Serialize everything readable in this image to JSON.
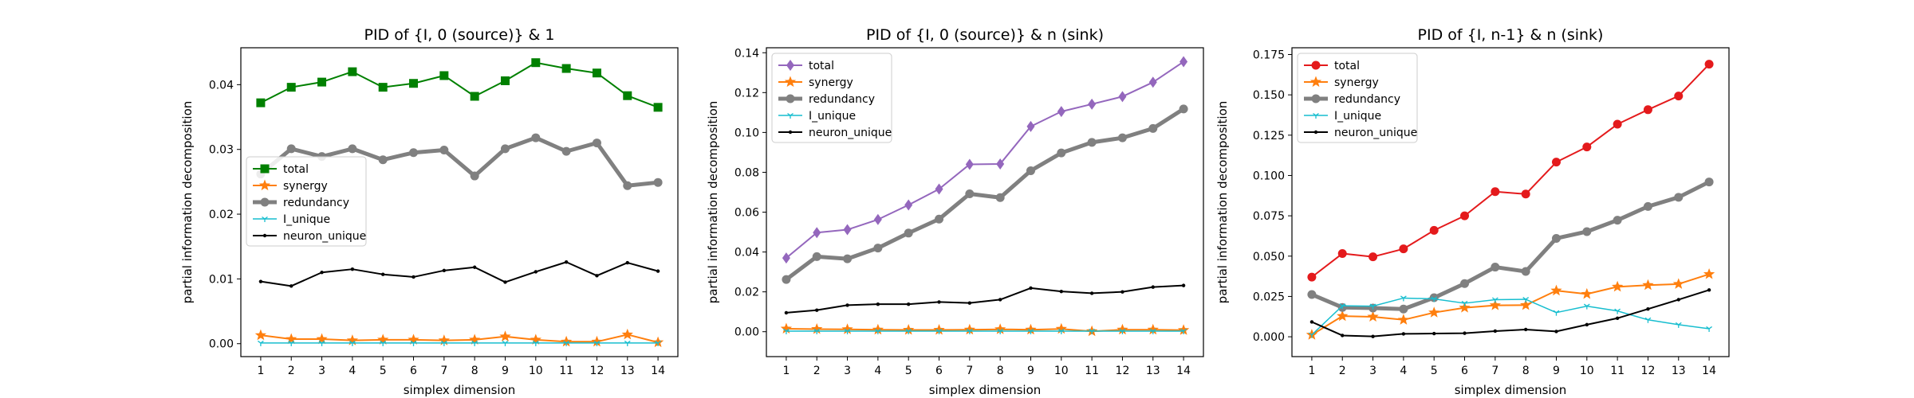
{
  "chart_data": [
    {
      "type": "line",
      "title": "PID of {I, 0 (source)} & 1",
      "xlabel": "simplex dimension",
      "ylabel": "partial information decomposition",
      "x": [
        1,
        2,
        3,
        4,
        5,
        6,
        7,
        8,
        9,
        10,
        11,
        12,
        13,
        14
      ],
      "xticks": [
        "1",
        "2",
        "3",
        "4",
        "5",
        "6",
        "7",
        "8",
        "9",
        "10",
        "11",
        "12",
        "13",
        "14"
      ],
      "yticks": [
        0.0,
        0.01,
        0.02,
        0.03,
        0.04
      ],
      "ytick_labels": [
        "0.00",
        "0.01",
        "0.02",
        "0.03",
        "0.04"
      ],
      "ylim": [
        -0.002,
        0.0457
      ],
      "legend_loc": "center-left",
      "series": [
        {
          "name": "total",
          "color": "#008000",
          "marker": "square",
          "width": 2,
          "values": [
            0.0372,
            0.0396,
            0.0404,
            0.042,
            0.0396,
            0.0402,
            0.0414,
            0.0382,
            0.0406,
            0.0434,
            0.0425,
            0.0418,
            0.0383,
            0.0365
          ]
        },
        {
          "name": "synergy",
          "color": "#ff7f0e",
          "marker": "star",
          "width": 2,
          "values": [
            0.0013,
            0.0007,
            0.0007,
            0.0005,
            0.0006,
            0.0006,
            0.0005,
            0.0006,
            0.0011,
            0.0006,
            0.0003,
            0.0003,
            0.0014,
            0.0002
          ]
        },
        {
          "name": "redundancy",
          "color": "#808080",
          "marker": "circle",
          "width": 5,
          "values": [
            0.0262,
            0.0301,
            0.0289,
            0.0301,
            0.0284,
            0.0295,
            0.0299,
            0.0259,
            0.0301,
            0.0318,
            0.0297,
            0.031,
            0.0244,
            0.0249
          ]
        },
        {
          "name": "I_unique",
          "color": "#17becf",
          "marker": "tri",
          "width": 1.5,
          "values": [
            0.0001,
            0.0001,
            0.0001,
            0.0001,
            0.0001,
            0.0001,
            0.0001,
            0.0001,
            0.0001,
            0.0001,
            0.0001,
            0.0001,
            0.0001,
            0.0001
          ]
        },
        {
          "name": "neuron_unique",
          "color": "#000000",
          "marker": "dot",
          "width": 2,
          "values": [
            0.0096,
            0.0089,
            0.011,
            0.0115,
            0.0107,
            0.0103,
            0.0113,
            0.0118,
            0.0095,
            0.0111,
            0.0126,
            0.0105,
            0.0125,
            0.0112
          ]
        }
      ]
    },
    {
      "type": "line",
      "title": "PID of {I, 0 (source)} & n (sink)",
      "xlabel": "simplex dimension",
      "ylabel": "partial information decomposition",
      "x": [
        1,
        2,
        3,
        4,
        5,
        6,
        7,
        8,
        9,
        10,
        11,
        12,
        13,
        14
      ],
      "xticks": [
        "1",
        "2",
        "3",
        "4",
        "5",
        "6",
        "7",
        "8",
        "9",
        "10",
        "11",
        "12",
        "13",
        "14"
      ],
      "yticks": [
        0.0,
        0.02,
        0.04,
        0.06,
        0.08,
        0.1,
        0.12,
        0.14
      ],
      "ytick_labels": [
        "0.00",
        "0.02",
        "0.04",
        "0.06",
        "0.08",
        "0.10",
        "0.12",
        "0.14"
      ],
      "ylim": [
        -0.0125,
        0.1425
      ],
      "legend_loc": "top-left",
      "series": [
        {
          "name": "total",
          "color": "#9467bd",
          "marker": "diamond",
          "width": 2,
          "values": [
            0.037,
            0.0497,
            0.0512,
            0.0563,
            0.0636,
            0.0716,
            0.084,
            0.0842,
            0.103,
            0.1105,
            0.1142,
            0.118,
            0.1252,
            0.1355
          ]
        },
        {
          "name": "synergy",
          "color": "#ff7f0e",
          "marker": "star",
          "width": 2,
          "values": [
            0.0015,
            0.0013,
            0.0012,
            0.001,
            0.0009,
            0.0009,
            0.001,
            0.0012,
            0.001,
            0.0014,
            0.0002,
            0.001,
            0.001,
            0.0008
          ]
        },
        {
          "name": "redundancy",
          "color": "#808080",
          "marker": "circle",
          "width": 5,
          "values": [
            0.0262,
            0.0377,
            0.0366,
            0.042,
            0.0495,
            0.0565,
            0.0692,
            0.0673,
            0.0808,
            0.0897,
            0.095,
            0.0973,
            0.102,
            0.1118
          ]
        },
        {
          "name": "I_unique",
          "color": "#17becf",
          "marker": "tri",
          "width": 1.5,
          "values": [
            0.0003,
            0.0003,
            0.0003,
            0.0003,
            0.0003,
            0.0003,
            0.0003,
            0.0003,
            0.0003,
            0.0003,
            0.0003,
            0.0003,
            0.0003,
            0.0003
          ]
        },
        {
          "name": "neuron_unique",
          "color": "#000000",
          "marker": "dot",
          "width": 2,
          "values": [
            0.0095,
            0.0108,
            0.0133,
            0.0138,
            0.0138,
            0.0149,
            0.0144,
            0.0161,
            0.0219,
            0.0202,
            0.0193,
            0.02,
            0.0224,
            0.0232
          ]
        }
      ]
    },
    {
      "type": "line",
      "title": "PID of {I, n-1} & n (sink)",
      "xlabel": "simplex dimension",
      "ylabel": "partial information decomposition",
      "x": [
        1,
        2,
        3,
        4,
        5,
        6,
        7,
        8,
        9,
        10,
        11,
        12,
        13,
        14
      ],
      "xticks": [
        "1",
        "2",
        "3",
        "4",
        "5",
        "6",
        "7",
        "8",
        "9",
        "10",
        "11",
        "12",
        "13",
        "14"
      ],
      "yticks": [
        0.0,
        0.025,
        0.05,
        0.075,
        0.1,
        0.125,
        0.15,
        0.175
      ],
      "ytick_labels": [
        "0.000",
        "0.025",
        "0.050",
        "0.075",
        "0.100",
        "0.125",
        "0.150",
        "0.175"
      ],
      "ylim": [
        -0.0123,
        0.1792
      ],
      "legend_loc": "top-left",
      "series": [
        {
          "name": "total",
          "color": "#e41a1c",
          "marker": "circle",
          "width": 2,
          "values": [
            0.037,
            0.0516,
            0.0496,
            0.0545,
            0.066,
            0.075,
            0.09,
            0.0885,
            0.1083,
            0.1177,
            0.1318,
            0.1408,
            0.1493,
            0.169
          ]
        },
        {
          "name": "synergy",
          "color": "#ff7f0e",
          "marker": "star",
          "width": 2,
          "values": [
            0.0012,
            0.0128,
            0.0124,
            0.0105,
            0.015,
            0.018,
            0.0195,
            0.0196,
            0.0286,
            0.0265,
            0.031,
            0.032,
            0.0327,
            0.0388
          ]
        },
        {
          "name": "redundancy",
          "color": "#808080",
          "marker": "circle",
          "width": 5,
          "values": [
            0.0262,
            0.0182,
            0.0178,
            0.0172,
            0.0242,
            0.033,
            0.0432,
            0.0405,
            0.061,
            0.0652,
            0.0723,
            0.0808,
            0.0865,
            0.096
          ]
        },
        {
          "name": "I_unique",
          "color": "#17becf",
          "marker": "tri",
          "width": 1.5,
          "values": [
            0.0012,
            0.0192,
            0.019,
            0.024,
            0.0235,
            0.0208,
            0.023,
            0.0232,
            0.015,
            0.019,
            0.016,
            0.0105,
            0.0075,
            0.005
          ]
        },
        {
          "name": "neuron_unique",
          "color": "#000000",
          "marker": "dot",
          "width": 2,
          "values": [
            0.0092,
            0.0008,
            0.0002,
            0.0018,
            0.002,
            0.0022,
            0.0035,
            0.0045,
            0.0033,
            0.0075,
            0.0115,
            0.0172,
            0.023,
            0.029
          ]
        }
      ]
    }
  ]
}
